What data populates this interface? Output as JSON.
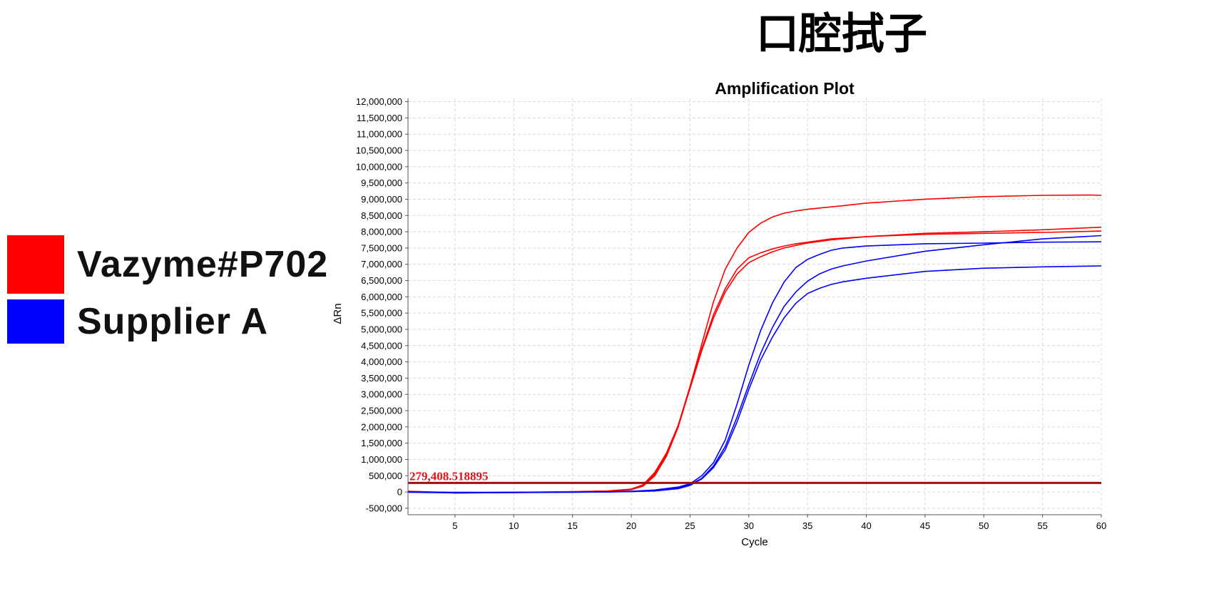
{
  "page_title": "口腔拭子",
  "legend": [
    {
      "label": "Vazyme#P702",
      "color": "#ff0000"
    },
    {
      "label": "Supplier A",
      "color": "#0000ff"
    }
  ],
  "chart_data": {
    "type": "line",
    "title": "Amplification Plot",
    "xlabel": "Cycle",
    "ylabel": "ΔRn",
    "xlim": [
      1,
      60
    ],
    "ylim": [
      -700000,
      12100000
    ],
    "xticks": [
      5,
      10,
      15,
      20,
      25,
      30,
      35,
      40,
      45,
      50,
      55,
      60
    ],
    "xtick_labels": [
      "5",
      "10",
      "15",
      "20",
      "25",
      "30",
      "35",
      "40",
      "45",
      "50",
      "55",
      "60"
    ],
    "yticks": [
      -500000,
      0,
      500000,
      1000000,
      1500000,
      2000000,
      2500000,
      3000000,
      3500000,
      4000000,
      4500000,
      5000000,
      5500000,
      6000000,
      6500000,
      7000000,
      7500000,
      8000000,
      8500000,
      9000000,
      9500000,
      10000000,
      10500000,
      11000000,
      11500000,
      12000000
    ],
    "ytick_labels": [
      "-500,000",
      "0",
      "500,000",
      "1,000,000",
      "1,500,000",
      "2,000,000",
      "2,500,000",
      "3,000,000",
      "3,500,000",
      "4,000,000",
      "4,500,000",
      "5,000,000",
      "5,500,000",
      "6,000,000",
      "6,500,000",
      "7,000,000",
      "7,500,000",
      "8,000,000",
      "8,500,000",
      "9,000,000",
      "9,500,000",
      "10,000,000",
      "10,500,000",
      "11,000,000",
      "11,500,000",
      "12,000,000"
    ],
    "grid": true,
    "threshold": {
      "value": 279408.518895,
      "label": "279,408.518895",
      "color": "#a01010"
    },
    "series": [
      {
        "color": "#ff0000",
        "points": [
          [
            1,
            20000
          ],
          [
            5,
            -20000
          ],
          [
            10,
            -10000
          ],
          [
            15,
            0
          ],
          [
            18,
            30000
          ],
          [
            20,
            80000
          ],
          [
            21,
            200000
          ],
          [
            22,
            550000
          ],
          [
            23,
            1150000
          ],
          [
            24,
            2050000
          ],
          [
            25,
            3250000
          ],
          [
            26,
            4550000
          ],
          [
            27,
            5850000
          ],
          [
            28,
            6850000
          ],
          [
            29,
            7500000
          ],
          [
            30,
            7980000
          ],
          [
            31,
            8260000
          ],
          [
            32,
            8450000
          ],
          [
            33,
            8570000
          ],
          [
            34,
            8640000
          ],
          [
            35,
            8690000
          ],
          [
            36,
            8730000
          ],
          [
            38,
            8800000
          ],
          [
            40,
            8880000
          ],
          [
            45,
            9000000
          ],
          [
            50,
            9080000
          ],
          [
            55,
            9120000
          ],
          [
            59,
            9130000
          ],
          [
            60,
            9120000
          ]
        ]
      },
      {
        "color": "#ff0000",
        "points": [
          [
            1,
            10000
          ],
          [
            5,
            -30000
          ],
          [
            10,
            -20000
          ],
          [
            15,
            0
          ],
          [
            18,
            20000
          ],
          [
            20,
            70000
          ],
          [
            21,
            180000
          ],
          [
            22,
            500000
          ],
          [
            23,
            1100000
          ],
          [
            24,
            2000000
          ],
          [
            25,
            3200000
          ],
          [
            26,
            4400000
          ],
          [
            27,
            5450000
          ],
          [
            28,
            6250000
          ],
          [
            29,
            6850000
          ],
          [
            30,
            7200000
          ],
          [
            31,
            7350000
          ],
          [
            32,
            7470000
          ],
          [
            33,
            7560000
          ],
          [
            34,
            7630000
          ],
          [
            35,
            7680000
          ],
          [
            37,
            7780000
          ],
          [
            40,
            7850000
          ],
          [
            45,
            7950000
          ],
          [
            50,
            8000000
          ],
          [
            55,
            8060000
          ],
          [
            60,
            8140000
          ]
        ]
      },
      {
        "color": "#ff0000",
        "points": [
          [
            1,
            0
          ],
          [
            5,
            -20000
          ],
          [
            10,
            -10000
          ],
          [
            15,
            10000
          ],
          [
            18,
            30000
          ],
          [
            20,
            90000
          ],
          [
            21,
            220000
          ],
          [
            22,
            600000
          ],
          [
            23,
            1200000
          ],
          [
            24,
            2050000
          ],
          [
            25,
            3180000
          ],
          [
            26,
            4350000
          ],
          [
            27,
            5350000
          ],
          [
            28,
            6150000
          ],
          [
            29,
            6700000
          ],
          [
            30,
            7050000
          ],
          [
            31,
            7230000
          ],
          [
            32,
            7380000
          ],
          [
            33,
            7500000
          ],
          [
            34,
            7580000
          ],
          [
            35,
            7650000
          ],
          [
            37,
            7750000
          ],
          [
            40,
            7850000
          ],
          [
            45,
            7920000
          ],
          [
            50,
            7950000
          ],
          [
            55,
            7980000
          ],
          [
            60,
            8020000
          ]
        ]
      },
      {
        "color": "#0000ff",
        "points": [
          [
            1,
            0
          ],
          [
            5,
            -20000
          ],
          [
            10,
            -15000
          ],
          [
            15,
            -5000
          ],
          [
            18,
            0
          ],
          [
            20,
            20000
          ],
          [
            22,
            60000
          ],
          [
            24,
            150000
          ],
          [
            25,
            250000
          ],
          [
            26,
            500000
          ],
          [
            27,
            900000
          ],
          [
            28,
            1600000
          ],
          [
            29,
            2700000
          ],
          [
            30,
            3900000
          ],
          [
            31,
            4950000
          ],
          [
            32,
            5800000
          ],
          [
            33,
            6450000
          ],
          [
            34,
            6900000
          ],
          [
            35,
            7150000
          ],
          [
            36,
            7300000
          ],
          [
            37,
            7430000
          ],
          [
            38,
            7500000
          ],
          [
            40,
            7560000
          ],
          [
            45,
            7630000
          ],
          [
            50,
            7650000
          ],
          [
            55,
            7680000
          ],
          [
            60,
            7690000
          ]
        ]
      },
      {
        "color": "#0000ff",
        "points": [
          [
            1,
            -10000
          ],
          [
            5,
            -30000
          ],
          [
            10,
            -20000
          ],
          [
            15,
            -10000
          ],
          [
            18,
            0
          ],
          [
            20,
            10000
          ],
          [
            22,
            40000
          ],
          [
            24,
            120000
          ],
          [
            25,
            220000
          ],
          [
            26,
            420000
          ],
          [
            27,
            800000
          ],
          [
            28,
            1400000
          ],
          [
            29,
            2300000
          ],
          [
            30,
            3300000
          ],
          [
            31,
            4250000
          ],
          [
            32,
            5050000
          ],
          [
            33,
            5700000
          ],
          [
            34,
            6150000
          ],
          [
            35,
            6480000
          ],
          [
            36,
            6700000
          ],
          [
            37,
            6850000
          ],
          [
            38,
            6950000
          ],
          [
            40,
            7100000
          ],
          [
            45,
            7400000
          ],
          [
            50,
            7600000
          ],
          [
            55,
            7780000
          ],
          [
            60,
            7880000
          ]
        ]
      },
      {
        "color": "#0000ff",
        "points": [
          [
            1,
            0
          ],
          [
            5,
            -10000
          ],
          [
            10,
            -10000
          ],
          [
            15,
            -5000
          ],
          [
            18,
            5000
          ],
          [
            20,
            15000
          ],
          [
            22,
            30000
          ],
          [
            24,
            100000
          ],
          [
            25,
            200000
          ],
          [
            26,
            400000
          ],
          [
            27,
            750000
          ],
          [
            28,
            1300000
          ],
          [
            29,
            2150000
          ],
          [
            30,
            3150000
          ],
          [
            31,
            4050000
          ],
          [
            32,
            4750000
          ],
          [
            33,
            5350000
          ],
          [
            34,
            5800000
          ],
          [
            35,
            6100000
          ],
          [
            36,
            6260000
          ],
          [
            37,
            6380000
          ],
          [
            38,
            6460000
          ],
          [
            40,
            6570000
          ],
          [
            45,
            6780000
          ],
          [
            50,
            6880000
          ],
          [
            55,
            6920000
          ],
          [
            60,
            6950000
          ]
        ]
      }
    ]
  }
}
